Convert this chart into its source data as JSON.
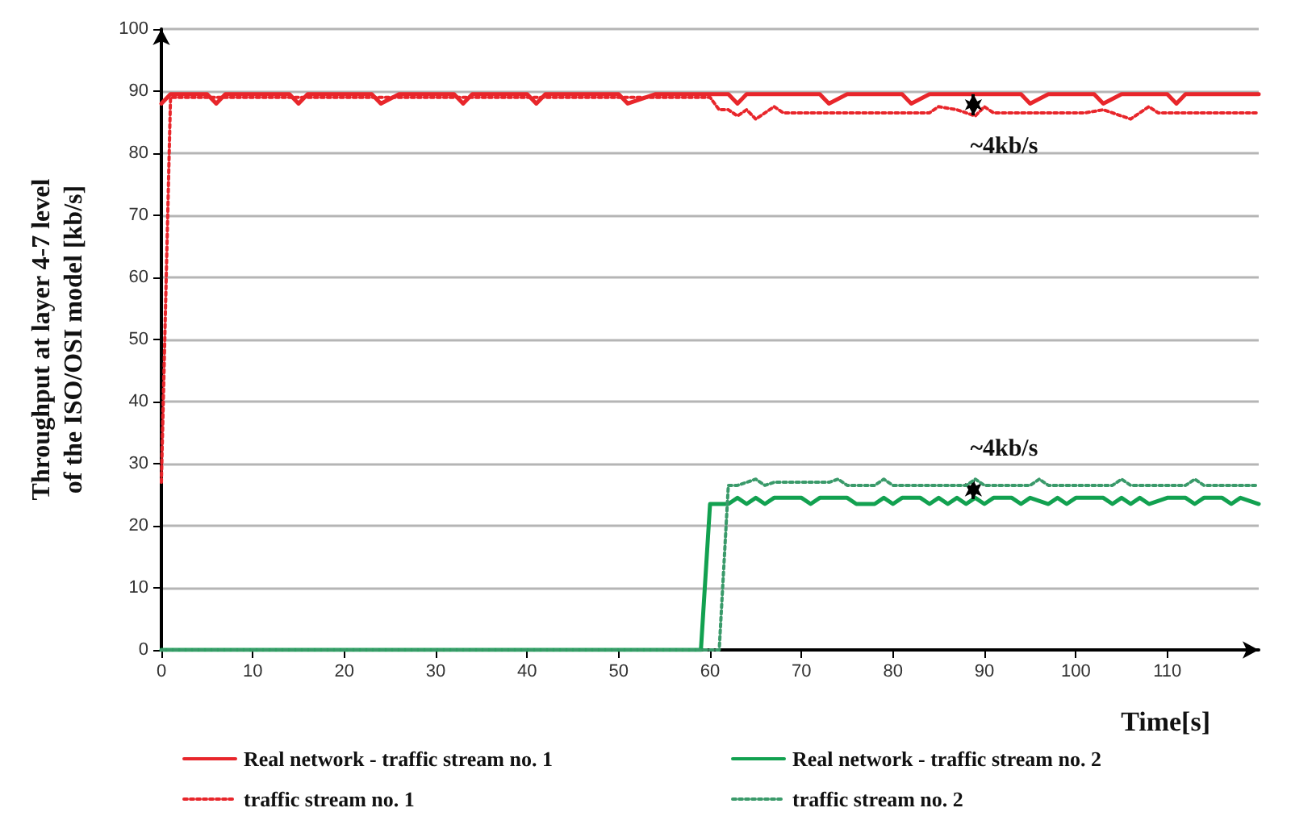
{
  "chart_data": {
    "type": "line",
    "xlabel": "Time[s]",
    "ylabel": "Throughput at layer 4-7 level\nof the ISO/OSI model [kb/s]",
    "xlim": [
      0,
      120
    ],
    "xticks": [
      0,
      10,
      20,
      30,
      40,
      50,
      60,
      70,
      80,
      90,
      100,
      110
    ],
    "ylim": [
      0,
      100
    ],
    "yticks": [
      0,
      10,
      20,
      30,
      40,
      50,
      60,
      70,
      80,
      90,
      100
    ],
    "grid": "y",
    "legend": "bottom",
    "marker": "none",
    "series": [
      {
        "name": "Real network - traffic stream no. 1",
        "color": "#e8262b",
        "line_style": "solid",
        "x": [
          0,
          1,
          5,
          6,
          7,
          14,
          15,
          16,
          23,
          24,
          26,
          32,
          33,
          34,
          40,
          41,
          42,
          50,
          51,
          54,
          62,
          63,
          64,
          72,
          73,
          75,
          81,
          82,
          84,
          94,
          95,
          97,
          102,
          103,
          105,
          110,
          111,
          112,
          120
        ],
        "values": [
          88,
          89.5,
          89.5,
          88,
          89.5,
          89.5,
          88,
          89.5,
          89.5,
          88,
          89.5,
          89.5,
          88,
          89.5,
          89.5,
          88,
          89.5,
          89.5,
          88,
          89.5,
          89.5,
          88,
          89.5,
          89.5,
          88,
          89.5,
          89.5,
          88,
          89.5,
          89.5,
          88,
          89.5,
          89.5,
          88,
          89.5,
          89.5,
          88,
          89.5,
          89.5
        ]
      },
      {
        "name": "Real network - traffic stream no. 2",
        "color": "#12a150",
        "line_style": "solid",
        "x": [
          0,
          59,
          60,
          62,
          63,
          64,
          65,
          66,
          67,
          70,
          71,
          72,
          75,
          76,
          78,
          79,
          80,
          81,
          83,
          84,
          85,
          86,
          87,
          88,
          89,
          90,
          91,
          93,
          94,
          95,
          97,
          98,
          99,
          100,
          103,
          104,
          105,
          106,
          107,
          108,
          110,
          112,
          113,
          114,
          116,
          117,
          118,
          120
        ],
        "values": [
          0,
          0,
          23.5,
          23.5,
          24.5,
          23.5,
          24.5,
          23.5,
          24.5,
          24.5,
          23.5,
          24.5,
          24.5,
          23.5,
          23.5,
          24.5,
          23.5,
          24.5,
          24.5,
          23.5,
          24.5,
          23.5,
          24.5,
          23.5,
          24.5,
          23.5,
          24.5,
          24.5,
          23.5,
          24.5,
          23.5,
          24.5,
          23.5,
          24.5,
          24.5,
          23.5,
          24.5,
          23.5,
          24.5,
          23.5,
          24.5,
          24.5,
          23.5,
          24.5,
          24.5,
          23.5,
          24.5,
          23.5
        ]
      },
      {
        "name": "traffic stream no. 1",
        "color": "#e8262b",
        "line_style": "dotted",
        "x": [
          0,
          1,
          60,
          61,
          62,
          63,
          64,
          65,
          67,
          68,
          84,
          85,
          87,
          89,
          90,
          91,
          101,
          103,
          106,
          108,
          109,
          120
        ],
        "values": [
          27,
          89,
          89,
          87,
          87,
          86,
          87,
          85.5,
          87.5,
          86.5,
          86.5,
          87.5,
          87,
          86,
          87.5,
          86.5,
          86.5,
          87,
          85.5,
          87.5,
          86.5,
          86.5
        ]
      },
      {
        "name": "traffic stream no. 2",
        "color": "#3a9a6a",
        "line_style": "dotted",
        "x": [
          0,
          61,
          62,
          63,
          65,
          66,
          67,
          73,
          74,
          75,
          78,
          79,
          80,
          88,
          89,
          90,
          95,
          96,
          97,
          104,
          105,
          106,
          112,
          113,
          114,
          120
        ],
        "values": [
          0,
          0,
          26.5,
          26.5,
          27.5,
          26.5,
          27,
          27,
          27.5,
          26.5,
          26.5,
          27.5,
          26.5,
          26.5,
          27.5,
          26.5,
          26.5,
          27.5,
          26.5,
          26.5,
          27.5,
          26.5,
          26.5,
          27.5,
          26.5,
          26.5
        ]
      }
    ],
    "annotations": [
      "~4kb/s",
      "~4kb/s"
    ]
  }
}
